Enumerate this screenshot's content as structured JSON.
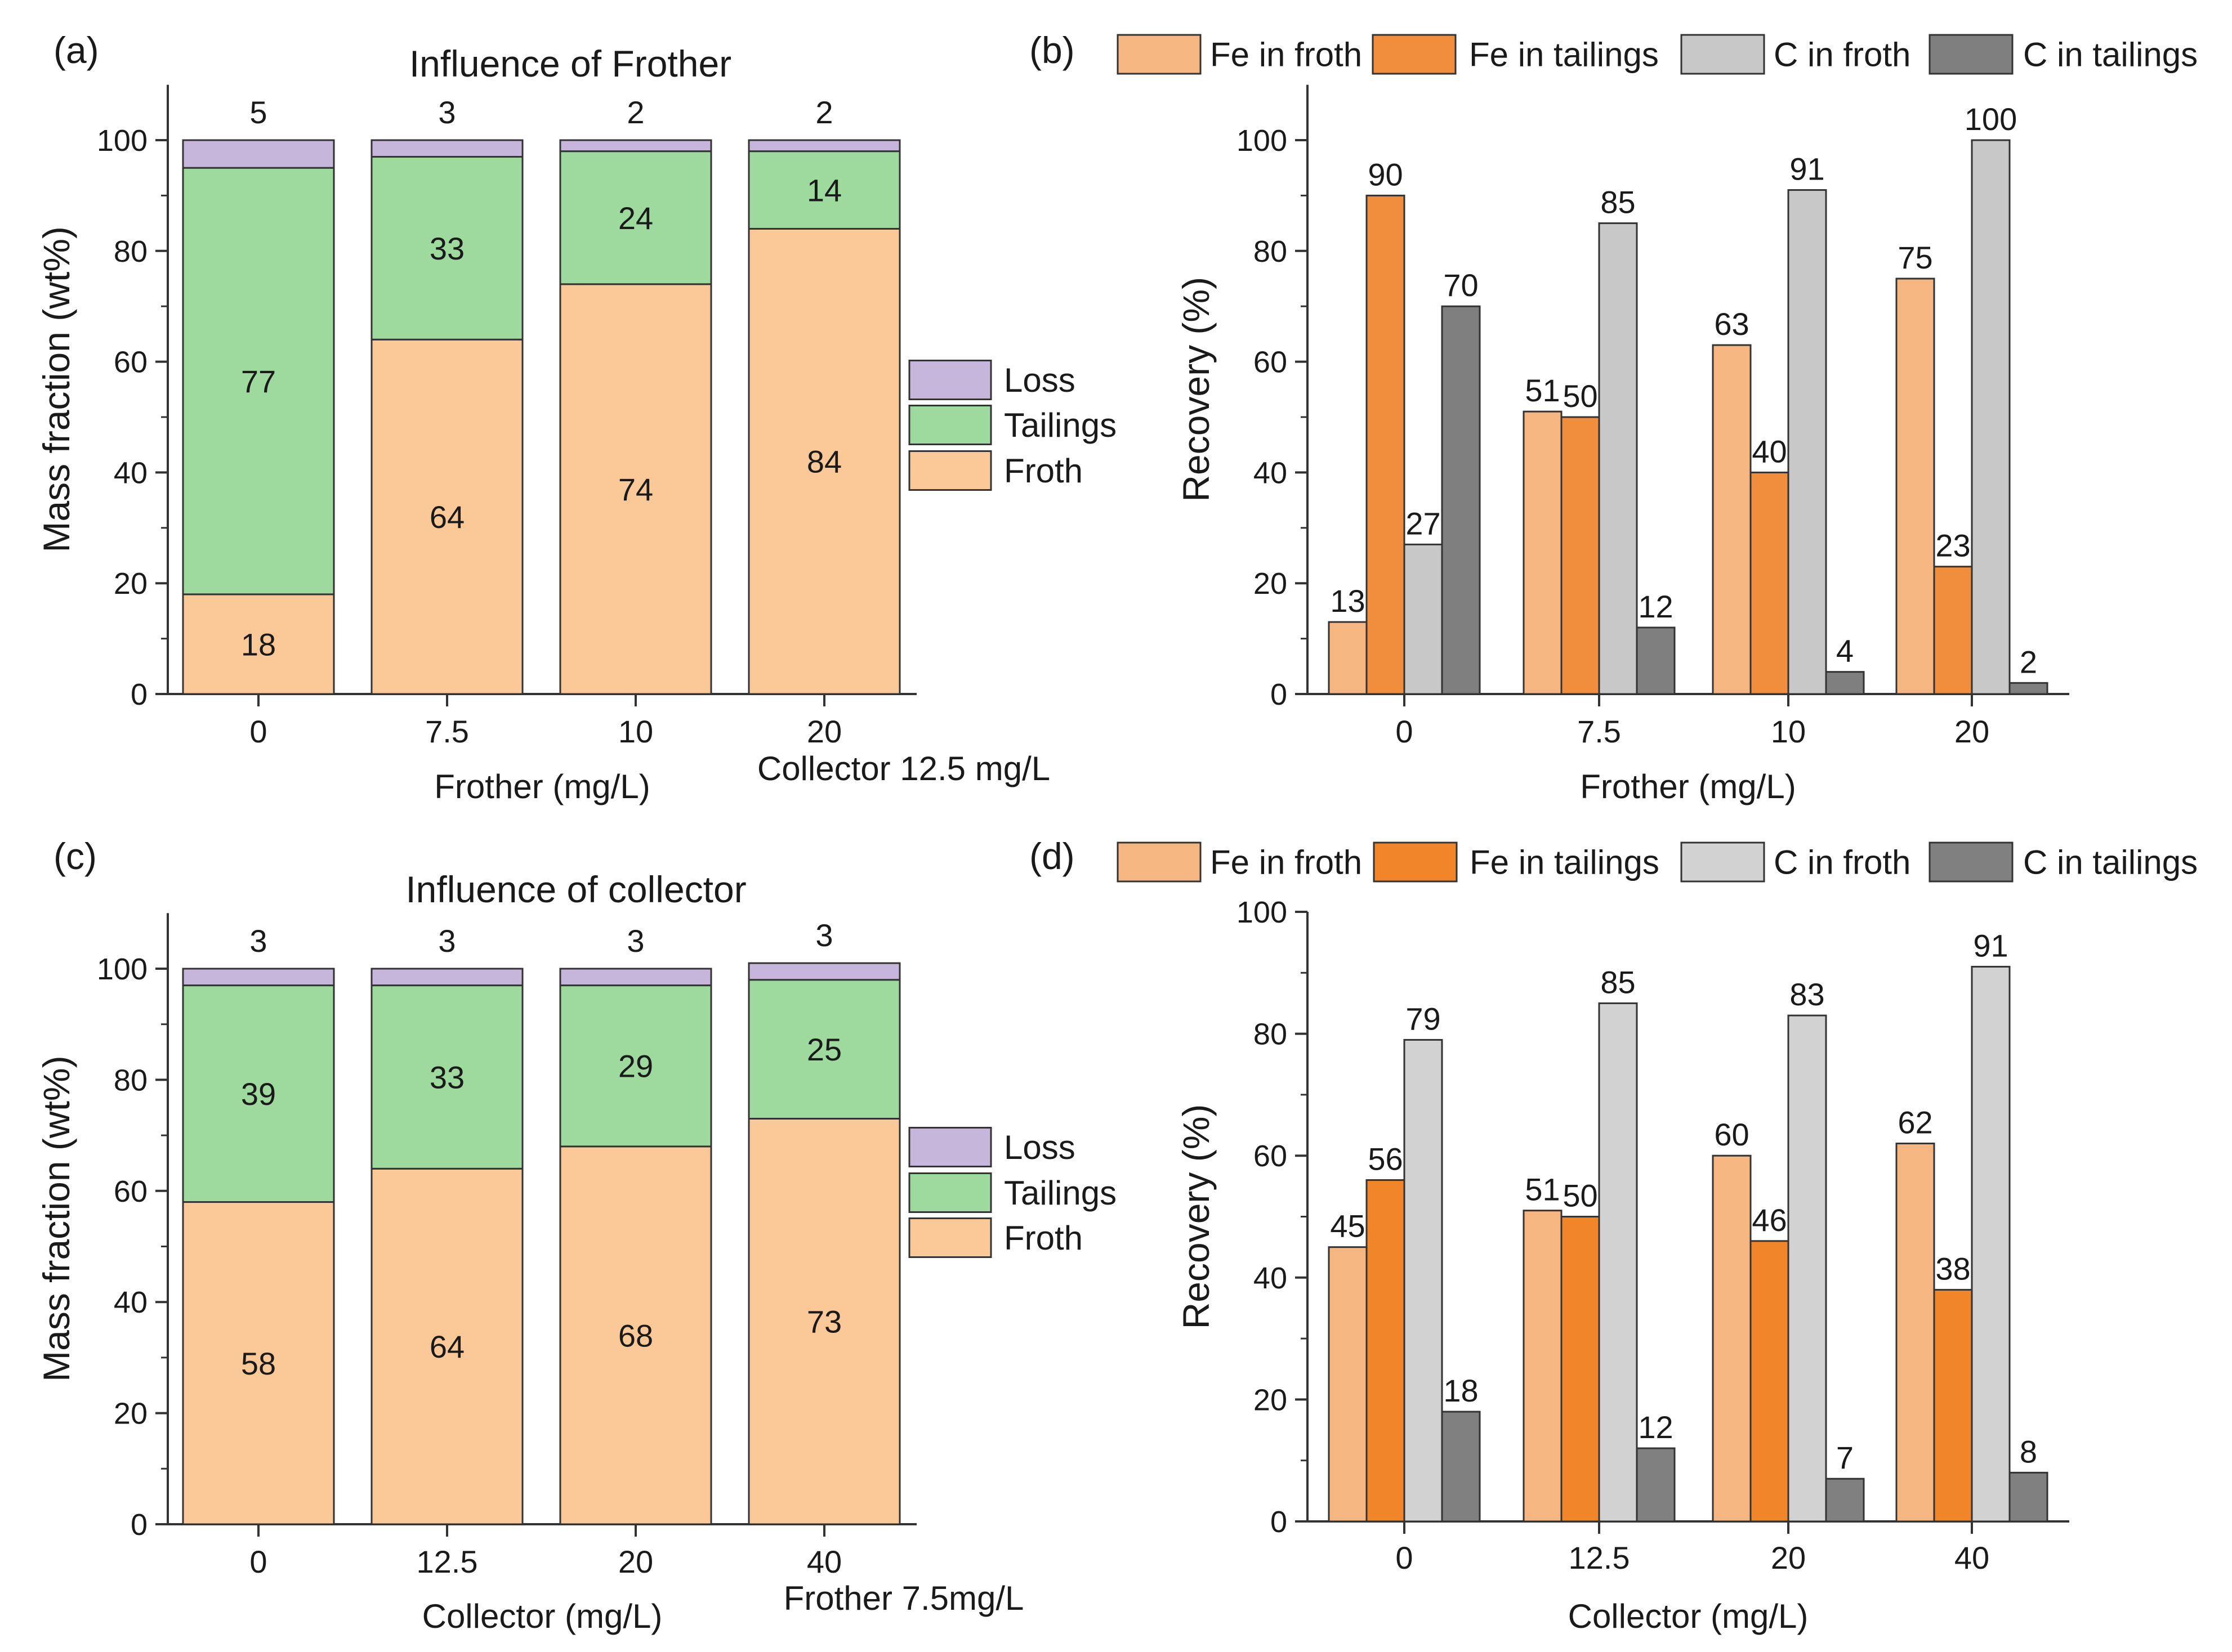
{
  "chart_data": [
    {
      "id": "a",
      "panel_label": "(a)",
      "type": "bar",
      "stacked": true,
      "title": "Influence of Frother",
      "categories": [
        "0",
        "7.5",
        "10",
        "20"
      ],
      "series": [
        {
          "name": "Froth",
          "values": [
            18,
            64,
            74,
            84
          ],
          "color": "#FBC898"
        },
        {
          "name": "Tailings",
          "values": [
            77,
            33,
            24,
            14
          ],
          "color": "#9ED99D"
        },
        {
          "name": "Loss",
          "values": [
            5,
            3,
            2,
            2
          ],
          "color": "#C7B6DB"
        }
      ],
      "legend": [
        "Loss",
        "Tailings",
        "Froth"
      ],
      "legend_position": "right",
      "xlabel": "Frother (mg/L)",
      "note": "Collector 12.5 mg/L",
      "ylabel": "Mass fraction (wt%)",
      "ylim": [
        0,
        110
      ],
      "yticks": [
        0,
        20,
        40,
        60,
        80,
        100
      ]
    },
    {
      "id": "b",
      "panel_label": "(b)",
      "type": "bar",
      "stacked": false,
      "categories": [
        "0",
        "7.5",
        "10",
        "20"
      ],
      "series": [
        {
          "name": "Fe in froth",
          "values": [
            13,
            51,
            63,
            75
          ],
          "color": "#F6B681"
        },
        {
          "name": "Fe in tailings",
          "values": [
            90,
            50,
            40,
            23
          ],
          "color": "#F18E3E"
        },
        {
          "name": "C in froth",
          "values": [
            27,
            85,
            91,
            100
          ],
          "color": "#C8C8C8"
        },
        {
          "name": "C in tailings",
          "values": [
            70,
            12,
            4,
            2
          ],
          "color": "#7F7F7F"
        }
      ],
      "legend_position": "top",
      "xlabel": "Frother (mg/L)",
      "ylabel": "Recovery (%)",
      "ylim": [
        0,
        110
      ],
      "yticks": [
        0,
        20,
        40,
        60,
        80,
        100
      ]
    },
    {
      "id": "c",
      "panel_label": "(c)",
      "type": "bar",
      "stacked": true,
      "title": "Influence of collector",
      "categories": [
        "0",
        "12.5",
        "20",
        "40"
      ],
      "series": [
        {
          "name": "Froth",
          "values": [
            58,
            64,
            68,
            73
          ],
          "color": "#FBC898"
        },
        {
          "name": "Tailings",
          "values": [
            39,
            33,
            29,
            25
          ],
          "color": "#9ED99D"
        },
        {
          "name": "Loss",
          "values": [
            3,
            3,
            3,
            3
          ],
          "color": "#C7B6DB"
        }
      ],
      "legend": [
        "Loss",
        "Tailings",
        "Froth"
      ],
      "legend_position": "right",
      "xlabel": "Collector (mg/L)",
      "note": "Frother 7.5mg/L",
      "ylabel": "Mass fraction (wt%)",
      "ylim": [
        0,
        110
      ],
      "yticks": [
        0,
        20,
        40,
        60,
        80,
        100
      ]
    },
    {
      "id": "d",
      "panel_label": "(d)",
      "type": "bar",
      "stacked": false,
      "categories": [
        "0",
        "12.5",
        "20",
        "40"
      ],
      "series": [
        {
          "name": "Fe in froth",
          "values": [
            45,
            51,
            60,
            62
          ],
          "color": "#F6B681"
        },
        {
          "name": "Fe in tailings",
          "values": [
            56,
            50,
            46,
            38
          ],
          "color": "#F0852A"
        },
        {
          "name": "C in froth",
          "values": [
            79,
            85,
            83,
            91
          ],
          "color": "#D2D2D2"
        },
        {
          "name": "C in tailings",
          "values": [
            18,
            12,
            7,
            8
          ],
          "color": "#808080"
        }
      ],
      "legend_position": "top",
      "xlabel": "Collector (mg/L)",
      "ylabel": "Recovery (%)",
      "ylim": [
        0,
        100
      ],
      "yticks": [
        0,
        20,
        40,
        60,
        80,
        100
      ]
    }
  ]
}
